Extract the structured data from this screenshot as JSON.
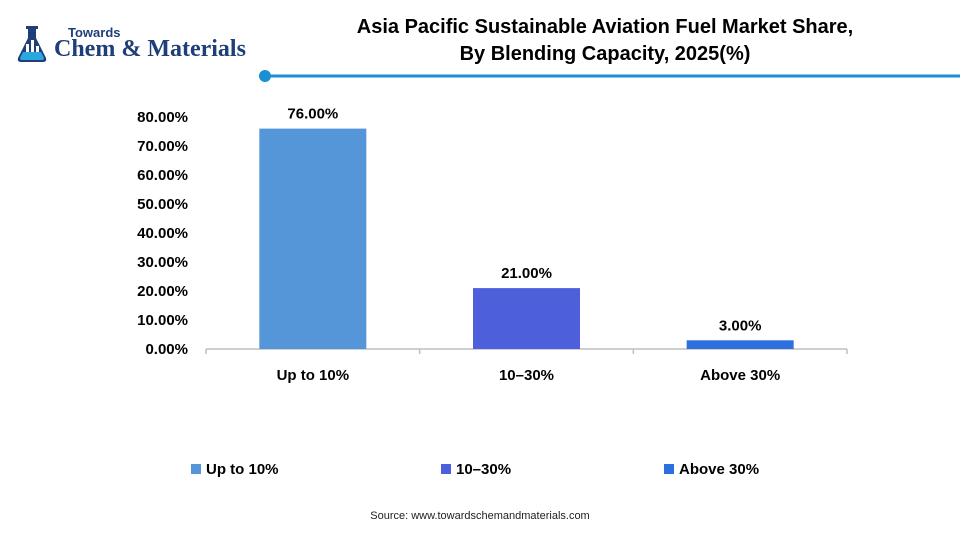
{
  "brand": {
    "small": "Towards",
    "big": "Chem & Materials"
  },
  "chart_data": {
    "type": "bar",
    "title_line1": "Asia Pacific Sustainable Aviation Fuel Market Share,",
    "title_line2": "By Blending Capacity, 2025(%)",
    "categories": [
      "Up to 10%",
      "10–30%",
      "Above 30%"
    ],
    "values": [
      76.0,
      21.0,
      3.0
    ],
    "value_labels": [
      "76.00%",
      "21.00%",
      "3.00%"
    ],
    "colors": [
      "#5596d8",
      "#4e5fdc",
      "#2e6fe0"
    ],
    "ylim": [
      0,
      80
    ],
    "yticks": [
      "0.00%",
      "10.00%",
      "20.00%",
      "30.00%",
      "40.00%",
      "50.00%",
      "60.00%",
      "70.00%",
      "80.00%"
    ],
    "xlabel": "",
    "ylabel": "",
    "grid": false,
    "legend_position": "bottom",
    "legend": [
      "Up to 10%",
      "10–30%",
      "Above 30%"
    ]
  },
  "source": "Source: www.towardschemandmaterials.com",
  "accent_color": "#1a8fd1"
}
